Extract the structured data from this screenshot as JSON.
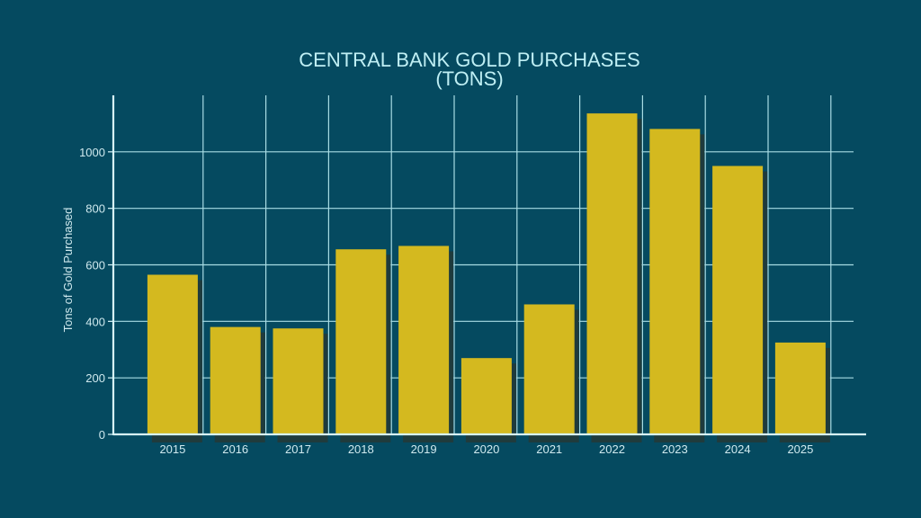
{
  "chart_data": {
    "type": "bar",
    "title_line1": "CENTRAL BANK GOLD PURCHASES",
    "title_line2": "(TONS)",
    "xlabel": "",
    "ylabel": "Tons of Gold Purchased",
    "categories": [
      "2015",
      "2016",
      "2017",
      "2018",
      "2019",
      "2020",
      "2021",
      "2022",
      "2023",
      "2024",
      "2025"
    ],
    "values": [
      565,
      380,
      375,
      655,
      667,
      270,
      460,
      1136,
      1081,
      950,
      325
    ],
    "ylim": [
      0,
      1200
    ],
    "yticks": [
      0,
      200,
      400,
      600,
      800,
      1000
    ],
    "grid": true,
    "colors": {
      "background": "#054a60",
      "bar": "#d4b91f",
      "bar_shadow": "#1f3b3c",
      "grid": "#a8dce4",
      "axis": "#d8f6fa",
      "text": "#cfe9ee",
      "title": "#bfeff4"
    }
  }
}
